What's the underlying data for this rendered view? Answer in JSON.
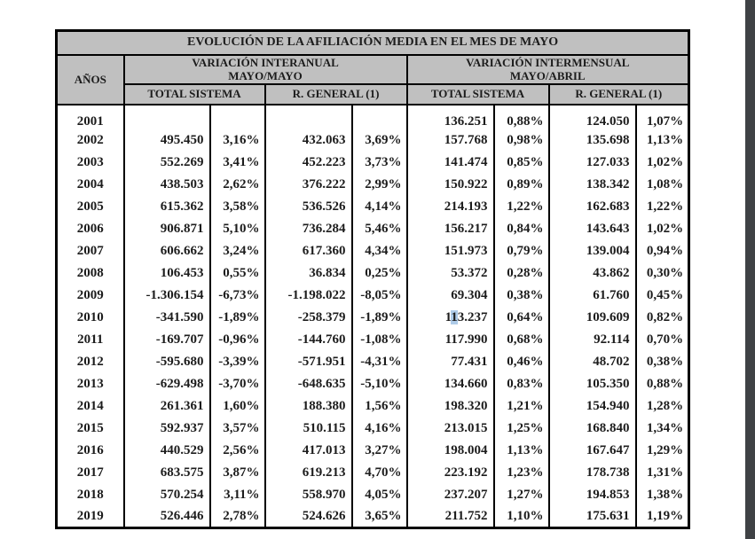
{
  "table": {
    "title": "EVOLUCIÓN DE LA AFILIACIÓN MEDIA EN EL MES DE MAYO",
    "header": {
      "years_label": "AÑOS",
      "group_interanual_line1": "VARIACIÓN INTERANUAL",
      "group_interanual_line2": "MAYO/MAYO",
      "group_intermensual_line1": "VARIACIÓN INTERMENSUAL",
      "group_intermensual_line2": "MAYO/ABRIL",
      "sub_total_sistema": "TOTAL SISTEMA",
      "sub_regimen_general": "R. GENERAL (1)"
    },
    "colors": {
      "header_bg": "#c0c0c0",
      "border": "#000000",
      "text": "#1c1c1c",
      "selection_bg": "#aecbe8",
      "scrollbar": "#3f4245",
      "page_bg": "#ffffff"
    },
    "selection": {
      "row_year": "2010",
      "cell_index": 4,
      "char_index": 1
    },
    "rows": [
      {
        "year": "2001",
        "cells": [
          "",
          "",
          "",
          "",
          "136.251",
          "0,88%",
          "124.050",
          "1,07%"
        ]
      },
      {
        "year": "2002",
        "cells": [
          "495.450",
          "3,16%",
          "432.063",
          "3,69%",
          "157.768",
          "0,98%",
          "135.698",
          "1,13%"
        ]
      },
      {
        "year": "2003",
        "cells": [
          "552.269",
          "3,41%",
          "452.223",
          "3,73%",
          "141.474",
          "0,85%",
          "127.033",
          "1,02%"
        ]
      },
      {
        "year": "2004",
        "cells": [
          "438.503",
          "2,62%",
          "376.222",
          "2,99%",
          "150.922",
          "0,89%",
          "138.342",
          "1,08%"
        ]
      },
      {
        "year": "2005",
        "cells": [
          "615.362",
          "3,58%",
          "536.526",
          "4,14%",
          "214.193",
          "1,22%",
          "162.683",
          "1,22%"
        ]
      },
      {
        "year": "2006",
        "cells": [
          "906.871",
          "5,10%",
          "736.284",
          "5,46%",
          "156.217",
          "0,84%",
          "143.643",
          "1,02%"
        ]
      },
      {
        "year": "2007",
        "cells": [
          "606.662",
          "3,24%",
          "617.360",
          "4,34%",
          "151.973",
          "0,79%",
          "139.004",
          "0,94%"
        ]
      },
      {
        "year": "2008",
        "cells": [
          "106.453",
          "0,55%",
          "36.834",
          "0,25%",
          "53.372",
          "0,28%",
          "43.862",
          "0,30%"
        ]
      },
      {
        "year": "2009",
        "cells": [
          "-1.306.154",
          "-6,73%",
          "-1.198.022",
          "-8,05%",
          "69.304",
          "0,38%",
          "61.760",
          "0,45%"
        ]
      },
      {
        "year": "2010",
        "cells": [
          "-341.590",
          "-1,89%",
          "-258.379",
          "-1,89%",
          "113.237",
          "0,64%",
          "109.609",
          "0,82%"
        ]
      },
      {
        "year": "2011",
        "cells": [
          "-169.707",
          "-0,96%",
          "-144.760",
          "-1,08%",
          "117.990",
          "0,68%",
          "92.114",
          "0,70%"
        ]
      },
      {
        "year": "2012",
        "cells": [
          "-595.680",
          "-3,39%",
          "-571.951",
          "-4,31%",
          "77.431",
          "0,46%",
          "48.702",
          "0,38%"
        ]
      },
      {
        "year": "2013",
        "cells": [
          "-629.498",
          "-3,70%",
          "-648.635",
          "-5,10%",
          "134.660",
          "0,83%",
          "105.350",
          "0,88%"
        ]
      },
      {
        "year": "2014",
        "cells": [
          "261.361",
          "1,60%",
          "188.380",
          "1,56%",
          "198.320",
          "1,21%",
          "154.940",
          "1,28%"
        ]
      },
      {
        "year": "2015",
        "cells": [
          "592.937",
          "3,57%",
          "510.115",
          "4,16%",
          "213.015",
          "1,25%",
          "168.840",
          "1,34%"
        ]
      },
      {
        "year": "2016",
        "cells": [
          "440.529",
          "2,56%",
          "417.013",
          "3,27%",
          "198.004",
          "1,13%",
          "167.647",
          "1,29%"
        ]
      },
      {
        "year": "2017",
        "cells": [
          "683.575",
          "3,87%",
          "619.213",
          "4,70%",
          "223.192",
          "1,23%",
          "178.738",
          "1,31%"
        ]
      },
      {
        "year": "2018",
        "cells": [
          "570.254",
          "3,11%",
          "558.970",
          "4,05%",
          "237.207",
          "1,27%",
          "194.853",
          "1,38%"
        ]
      },
      {
        "year": "2019",
        "cells": [
          "526.446",
          "2,78%",
          "524.626",
          "3,65%",
          "211.752",
          "1,10%",
          "175.631",
          "1,19%"
        ]
      }
    ]
  }
}
